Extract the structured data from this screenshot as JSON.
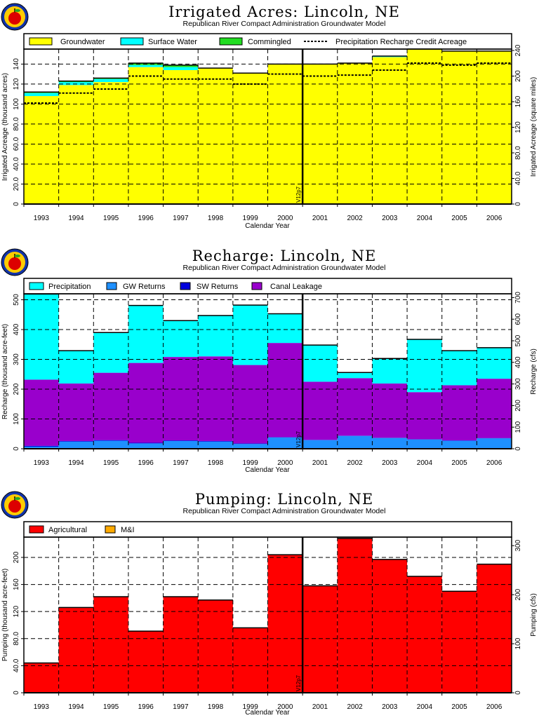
{
  "colors": {
    "groundwater": "#ffff00",
    "surface_water": "#00ffff",
    "commingled": "#22dd22",
    "precipitation": "#00ffff",
    "gw_returns": "#1e90ff",
    "sw_returns": "#0000dd",
    "canal_leakage": "#9900cc",
    "agricultural": "#ff0000",
    "mi": "#ffaa00"
  },
  "logo_icon": "apple-logo-icon",
  "chart_data": [
    {
      "type": "bar",
      "title": "Irrigated  Acres:  Lincoln,  NE",
      "subtitle": "Republican  River  Compact  Administration  Groundwater  Model",
      "xlabel": "Calendar  Year",
      "ylabel": "Irrigated  Acreage  (thousand  acres)",
      "y2label": "Irrigated  Acreage  (square  miles)",
      "categories": [
        "1993",
        "1994",
        "1995",
        "1996",
        "1997",
        "1998",
        "1999",
        "2000",
        "2001",
        "2002",
        "2003",
        "2004",
        "2005",
        "2006"
      ],
      "ylim": [
        0,
        155
      ],
      "yticks": [
        0,
        20,
        40,
        60,
        80,
        100,
        120,
        140
      ],
      "ytick_labels": [
        "0",
        "20.0",
        "40.0",
        "60.0",
        "80.0",
        "100",
        "120",
        "140"
      ],
      "y2ticks": [
        0,
        40,
        80,
        120,
        160,
        200,
        240
      ],
      "y2tick_labels": [
        "0",
        "40.0",
        "80.0",
        "120",
        "160",
        "200",
        "240"
      ],
      "y2_per_y": 1.5625,
      "stacked": true,
      "marker_line": {
        "category": "2001",
        "position": "left",
        "label": "V12p7"
      },
      "legend": {
        "placement": "top",
        "entries": [
          "Groundwater",
          "Surface  Water",
          "Commingled",
          "Precipitation  Recharge  Credit  Acreage"
        ]
      },
      "series": [
        {
          "name": "Groundwater",
          "values": [
            108,
            119,
            122,
            137,
            134,
            136,
            131,
            140,
            140,
            141,
            147,
            155,
            153,
            153
          ]
        },
        {
          "name": "Surface  Water",
          "values": [
            3,
            3,
            3,
            2,
            3,
            0,
            0,
            0,
            0,
            0,
            1,
            0,
            0,
            0
          ]
        },
        {
          "name": "Commingled",
          "values": [
            1,
            1,
            1,
            2,
            2,
            0,
            0,
            0,
            0,
            0,
            0,
            0,
            0,
            0
          ]
        },
        {
          "name": "Precipitation  Recharge  Credit  Acreage",
          "values": [
            101,
            111,
            115,
            128,
            125,
            125,
            120,
            130,
            128,
            129,
            134,
            141,
            139,
            141
          ]
        }
      ]
    },
    {
      "type": "bar",
      "title": "Recharge:  Lincoln,  NE",
      "subtitle": "Republican  River  Compact  Administration  Groundwater  Model",
      "xlabel": "Calendar  Year",
      "ylabel": "Recharge  (thousand  acre-feet)",
      "y2label": "Recharge  (cfs)",
      "categories": [
        "1993",
        "1994",
        "1995",
        "1996",
        "1997",
        "1998",
        "1999",
        "2000",
        "2001",
        "2002",
        "2003",
        "2004",
        "2005",
        "2006"
      ],
      "ylim": [
        0,
        520
      ],
      "yticks": [
        0,
        100,
        200,
        300,
        400,
        500
      ],
      "ytick_labels": [
        "0",
        "100",
        "200",
        "300",
        "400",
        "500"
      ],
      "y2ticks": [
        0,
        100,
        200,
        300,
        400,
        500,
        600,
        700
      ],
      "y2tick_labels": [
        "0",
        "100",
        "200",
        "300",
        "400",
        "500",
        "600",
        "700"
      ],
      "y2_per_y": 1.38,
      "stacked": true,
      "marker_line": {
        "category": "2001",
        "position": "left",
        "label": "V12p7"
      },
      "legend": {
        "placement": "top",
        "entries": [
          "Precipitation",
          "GW  Returns",
          "SW  Returns",
          "Canal  Leakage"
        ]
      },
      "series": [
        {
          "name": "GW  Returns",
          "values": [
            7,
            24,
            27,
            18,
            26,
            24,
            16,
            38,
            29,
            43,
            36,
            31,
            27,
            35
          ]
        },
        {
          "name": "SW  Returns",
          "values": [
            3,
            2,
            2,
            2,
            2,
            2,
            2,
            1,
            1,
            1,
            1,
            1,
            1,
            1
          ]
        },
        {
          "name": "Canal  Leakage",
          "values": [
            222,
            193,
            226,
            268,
            280,
            284,
            263,
            316,
            195,
            193,
            182,
            158,
            185,
            199
          ]
        },
        {
          "name": "Precipitation",
          "values": [
            287,
            110,
            135,
            193,
            122,
            137,
            201,
            98,
            123,
            19,
            84,
            177,
            116,
            104
          ]
        }
      ]
    },
    {
      "type": "bar",
      "title": "Pumping:  Lincoln,  NE",
      "subtitle": "Republican  River  Compact  Administration  Groundwater  Model",
      "xlabel": "Calendar  Year",
      "ylabel": "Pumping  (thousand  acre-feet)",
      "y2label": "Pumping  (cfs)",
      "categories": [
        "1993",
        "1994",
        "1995",
        "1996",
        "1997",
        "1998",
        "1999",
        "2000",
        "2001",
        "2002",
        "2003",
        "2004",
        "2005",
        "2006"
      ],
      "ylim": [
        0,
        230
      ],
      "yticks": [
        0,
        40,
        80,
        120,
        160,
        200
      ],
      "ytick_labels": [
        "0",
        "40.0",
        "80.0",
        "120",
        "160",
        "200"
      ],
      "y2ticks": [
        0,
        100,
        200,
        300
      ],
      "y2tick_labels": [
        "0",
        "100",
        "200",
        "300"
      ],
      "y2_per_y": 1.38,
      "stacked": true,
      "marker_line": {
        "category": "2001",
        "position": "left",
        "label": "V12p7"
      },
      "legend": {
        "placement": "top",
        "entries": [
          "Agricultural",
          "M&I"
        ]
      },
      "series": [
        {
          "name": "Agricultural",
          "values": [
            44,
            126,
            142,
            91,
            142,
            137,
            96,
            204,
            158,
            228,
            197,
            172,
            150,
            190
          ]
        },
        {
          "name": "M&I",
          "values": [
            0,
            0,
            0,
            0,
            0,
            0,
            0,
            0,
            0,
            0,
            0,
            0,
            0,
            0
          ]
        }
      ]
    }
  ]
}
